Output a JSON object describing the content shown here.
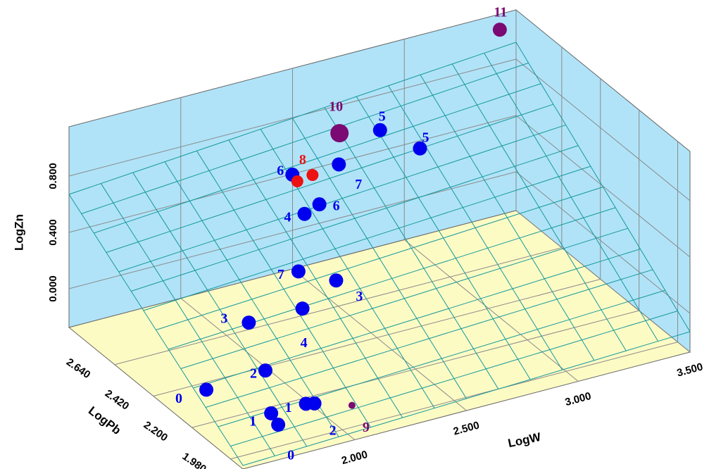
{
  "chart_data": {
    "type": "scatter3d",
    "x_label": "LogW",
    "y_label": "LogPb",
    "z_label": "LogZn",
    "xlim": [
      1.5,
      3.5
    ],
    "ylim": [
      1.91,
      2.9
    ],
    "zlim": [
      -0.275,
      1.15
    ],
    "xticks": [
      {
        "value": 2.0,
        "label": "2.000"
      },
      {
        "value": 2.5,
        "label": "2.500"
      },
      {
        "value": 3.0,
        "label": "3.000"
      },
      {
        "value": 3.5,
        "label": "3.500"
      }
    ],
    "yticks": [
      {
        "value": 1.98,
        "label": "1.980"
      },
      {
        "value": 2.2,
        "label": "2.200"
      },
      {
        "value": 2.42,
        "label": "2.420"
      },
      {
        "value": 2.64,
        "label": "2.640"
      }
    ],
    "zticks": [
      {
        "value": 0,
        "label": "0.000"
      },
      {
        "value": 0.4,
        "label": "0.400"
      },
      {
        "value": 0.8,
        "label": "0.800"
      }
    ],
    "grid": true,
    "surface": {
      "color": "#16999c",
      "z": [
        [
          -0.25,
          -0.13
        ],
        [
          0.67,
          0.92
        ]
      ]
    },
    "series": [
      {
        "color": "#0000ee",
        "x": [
          2.75,
          2.85,
          2.55,
          2.35,
          2.4,
          2.31,
          2.22,
          2.31,
          2.12,
          1.88,
          1.86,
          1.58,
          1.76,
          1.76,
          1.9,
          1.93
        ],
        "y": [
          2.72,
          2.62,
          2.7,
          2.71,
          2.62,
          2.59,
          2.51,
          2.41,
          2.36,
          2.36,
          2.24,
          2.22,
          2.08,
          2.04,
          2.06,
          2.05
        ],
        "z": [
          0.79,
          0.72,
          0.65,
          0.65,
          0.51,
          0.51,
          0.22,
          0.22,
          0.15,
          0.15,
          -0.06,
          -0.06,
          -0.16,
          -0.2,
          -0.13,
          -0.13
        ],
        "sizes": [
          1,
          1,
          1,
          1,
          1,
          1,
          1,
          1,
          1,
          1,
          1,
          1,
          1,
          1,
          1,
          1
        ],
        "labels": [
          "5",
          "5",
          "7",
          "6",
          "6",
          "4",
          "7",
          "3",
          "4",
          "3",
          "2",
          "0",
          "1",
          "0",
          "1",
          "2"
        ]
      },
      {
        "color": "#ee1111",
        "x": [
          2.44,
          2.38
        ],
        "y": [
          2.71,
          2.72
        ],
        "z": [
          0.61,
          0.58
        ],
        "sizes": [
          0.85,
          0.85
        ],
        "labels": [
          "8",
          null
        ]
      },
      {
        "color": "#7b0a73",
        "x": [
          3.38,
          2.6,
          2.09
        ],
        "y": [
          2.84,
          2.76,
          2.04
        ],
        "z": [
          1.12,
          0.79,
          -0.2
        ],
        "sizes": [
          1,
          1.3,
          0.5
        ],
        "labels": [
          "11",
          "10",
          "9"
        ]
      }
    ]
  }
}
